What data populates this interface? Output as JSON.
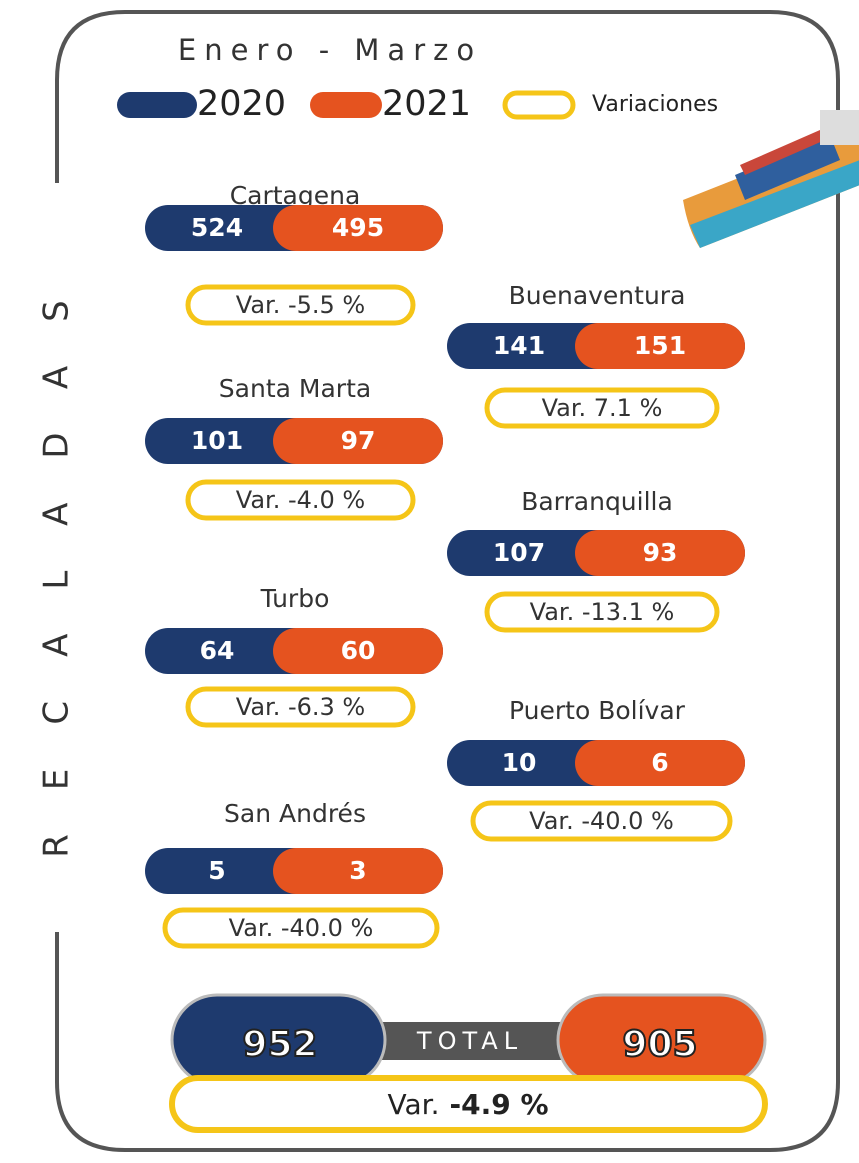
{
  "header": {
    "period": "Enero - Marzo",
    "legend": [
      "2020",
      "2021",
      "Variaciones"
    ]
  },
  "side_title": "RECALADAS",
  "ports": [
    {
      "name": "Cartagena",
      "v2020": 524,
      "v2021": 495,
      "variation": "Var. -5.5 %"
    },
    {
      "name": "Buenaventura",
      "v2020": 141,
      "v2021": 151,
      "variation": "Var. 7.1 %"
    },
    {
      "name": "Santa Marta",
      "v2020": 101,
      "v2021": 97,
      "variation": "Var. -4.0 %"
    },
    {
      "name": "Barranquilla",
      "v2020": 107,
      "v2021": 93,
      "variation": "Var. -13.1 %"
    },
    {
      "name": "Turbo",
      "v2020": 64,
      "v2021": 60,
      "variation": "Var. -6.3 %"
    },
    {
      "name": "Puerto Bolívar",
      "v2020": 10,
      "v2021": 6,
      "variation": "Var. -40.0 %"
    },
    {
      "name": "San Andrés",
      "v2020": 5,
      "v2021": 3,
      "variation": "Var. -40.0 %"
    }
  ],
  "total": {
    "label": "TOTAL",
    "v2020": 952,
    "v2021": 905,
    "variation_prefix": "Var.",
    "variation_value": "-4.9 %"
  }
}
